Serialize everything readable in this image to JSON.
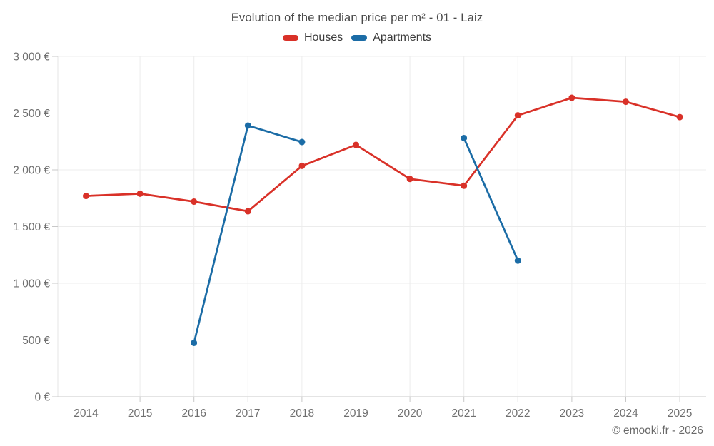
{
  "header": {
    "title": "Evolution of the median price per m² - 01 - Laiz"
  },
  "legend": {
    "items": [
      {
        "label": "Houses",
        "color": "#d93128"
      },
      {
        "label": "Apartments",
        "color": "#1b6ca6"
      }
    ]
  },
  "footer": {
    "copyright": "© emooki.fr - 2026"
  },
  "chart_data": {
    "type": "line",
    "title": "Evolution of the median price per m² - 01 - Laiz",
    "categories": [
      2014,
      2015,
      2016,
      2017,
      2018,
      2019,
      2020,
      2021,
      2022,
      2023,
      2024,
      2025
    ],
    "series": [
      {
        "name": "Houses",
        "color": "#d93128",
        "values": [
          1770,
          1790,
          1720,
          1635,
          2035,
          2220,
          1920,
          1860,
          2480,
          2635,
          2600,
          2465
        ]
      },
      {
        "name": "Apartments",
        "color": "#1b6ca6",
        "values": [
          null,
          null,
          475,
          2390,
          2245,
          null,
          null,
          2280,
          1200,
          null,
          null,
          null
        ]
      }
    ],
    "xlabel": "",
    "ylabel": "",
    "ylim": [
      0,
      3000
    ],
    "ytick_step": 500,
    "y_suffix": "€",
    "grid": true,
    "legend_position": "top",
    "colors": {
      "grid": "#ececec",
      "axis": "#c8c8c8",
      "left_border": "#e6e6e6",
      "tick_text": "#6f6f6f"
    }
  }
}
